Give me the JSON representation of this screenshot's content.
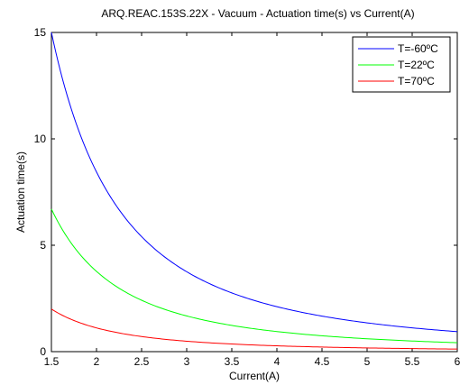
{
  "chart_data": {
    "type": "line",
    "title": "ARQ.REAC.153S.22X - Vacuum - Actuation time(s) vs Current(A)",
    "xlabel": "Current(A)",
    "ylabel": "Actuation time(s)",
    "xlim": [
      1.5,
      6
    ],
    "ylim": [
      0,
      15
    ],
    "x_ticks": [
      "1.5",
      "2",
      "2.5",
      "3",
      "3.5",
      "4",
      "4.5",
      "5",
      "5.5",
      "6"
    ],
    "y_ticks": [
      "0",
      "5",
      "10",
      "15"
    ],
    "grid": false,
    "legend_position": "top-right",
    "x": [
      1.5,
      2,
      2.5,
      3,
      3.5,
      4,
      4.5,
      5,
      5.5,
      6
    ],
    "series": [
      {
        "name": "T=-60ºC",
        "color": "#0000ff",
        "values": [
          15.0,
          8.4,
          5.4,
          3.75,
          2.75,
          2.1,
          1.67,
          1.35,
          1.12,
          0.94
        ]
      },
      {
        "name": "T=22ºC",
        "color": "#00ff00",
        "values": [
          6.7,
          3.8,
          2.4,
          1.68,
          1.23,
          0.94,
          0.75,
          0.61,
          0.5,
          0.42
        ]
      },
      {
        "name": "T=70ºC",
        "color": "#ff0000",
        "values": [
          2.0,
          1.12,
          0.72,
          0.5,
          0.37,
          0.28,
          0.22,
          0.18,
          0.15,
          0.12
        ]
      }
    ]
  }
}
